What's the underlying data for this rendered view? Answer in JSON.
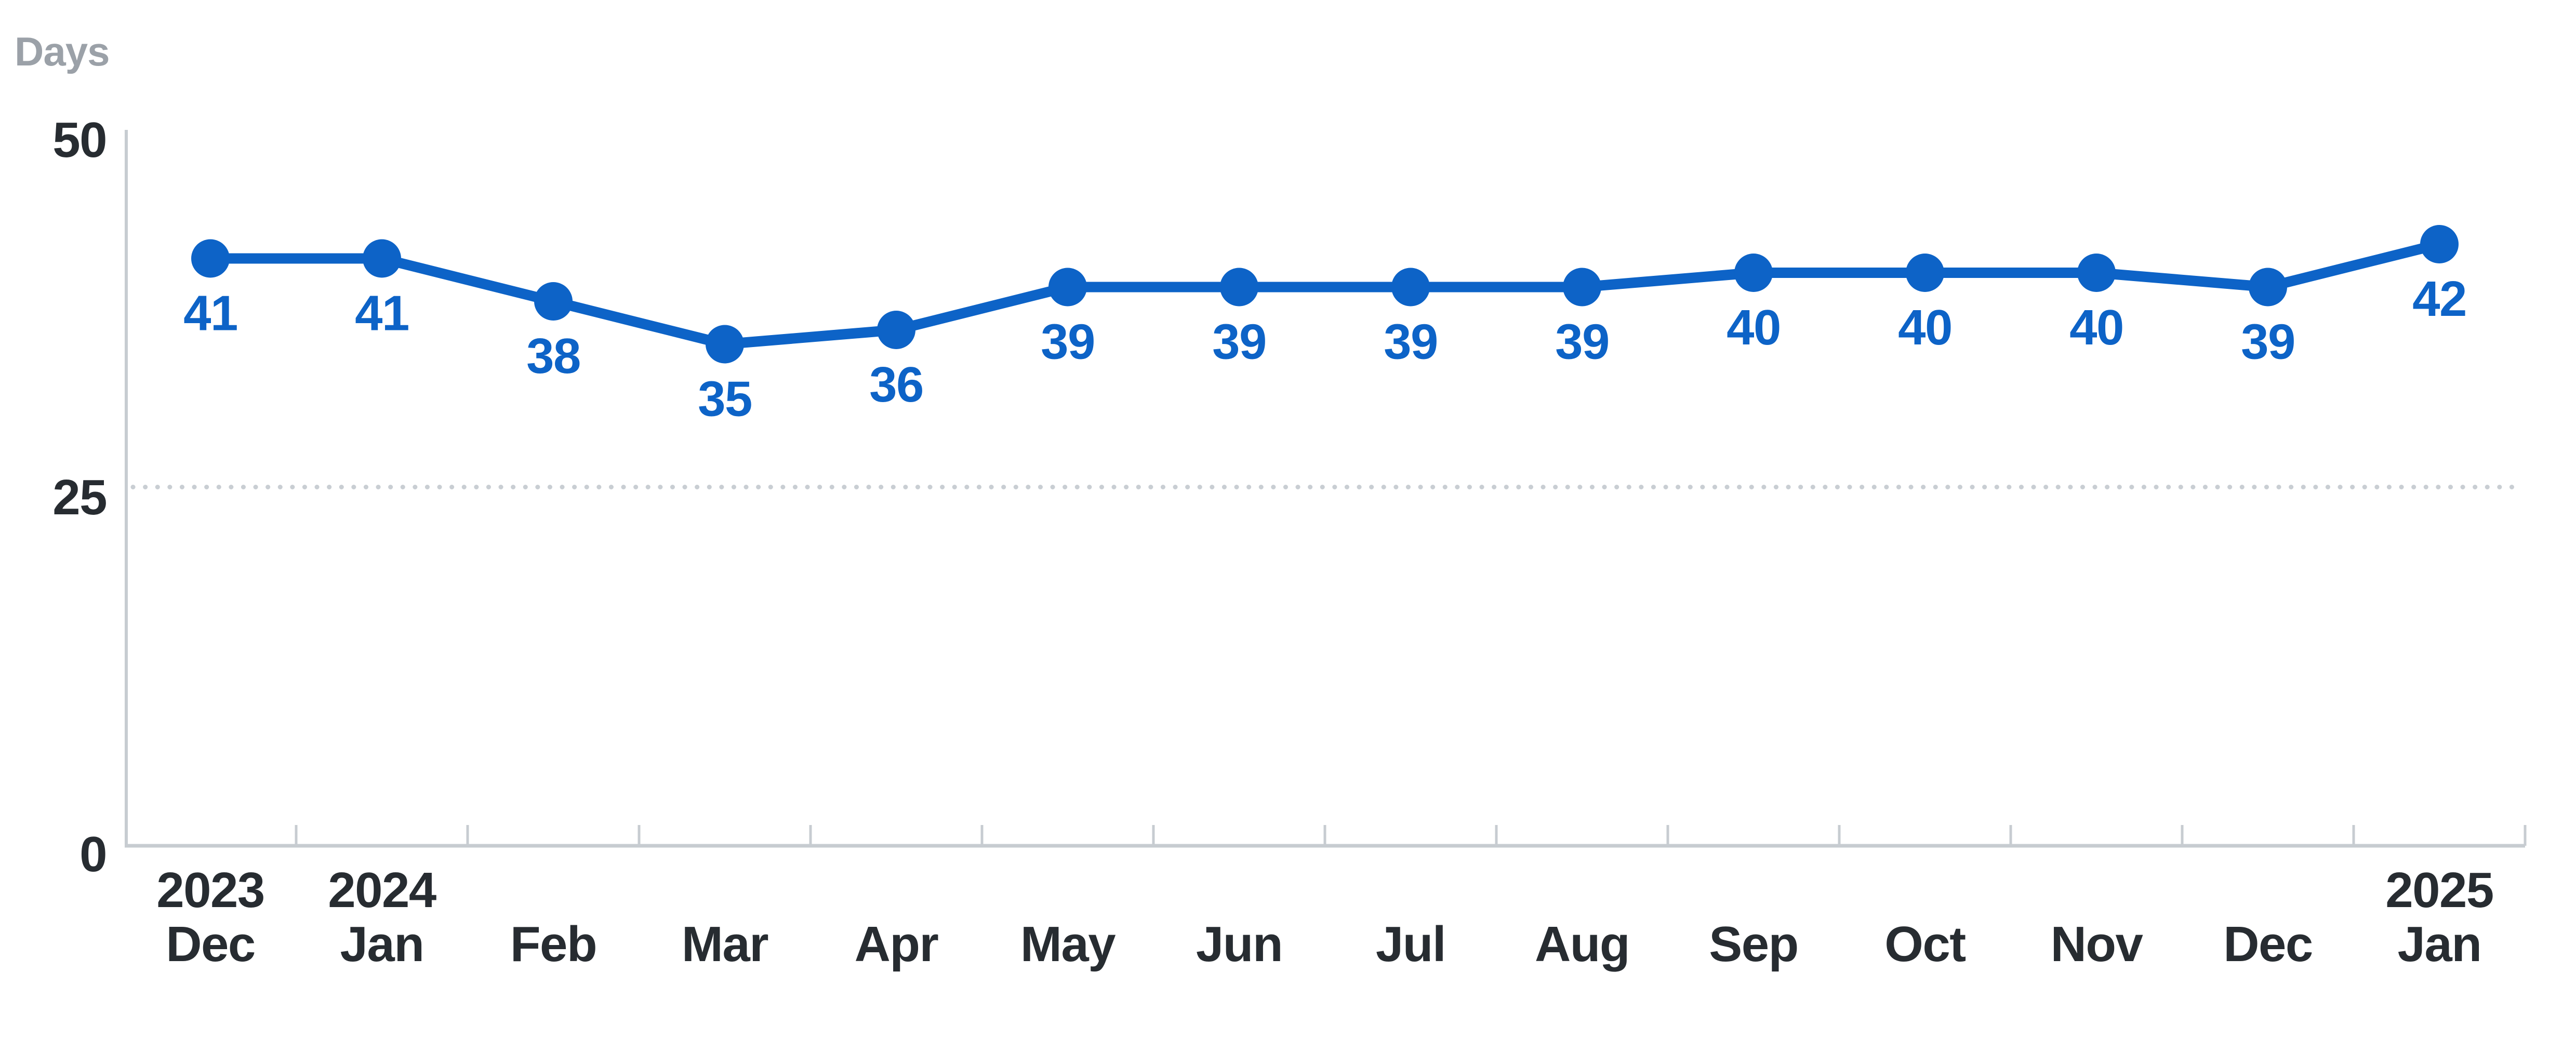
{
  "chart_data": {
    "type": "line",
    "title": "",
    "ylabel": "Days",
    "xlabel": "",
    "categories": [
      "Dec",
      "Jan",
      "Feb",
      "Mar",
      "Apr",
      "May",
      "Jun",
      "Jul",
      "Aug",
      "Sep",
      "Oct",
      "Nov",
      "Dec",
      "Jan"
    ],
    "category_years": [
      "2023",
      "2024",
      "",
      "",
      "",
      "",
      "",
      "",
      "",
      "",
      "",
      "",
      "",
      "2025"
    ],
    "series": [
      {
        "name": "Days",
        "values": [
          41,
          41,
          38,
          35,
          36,
          39,
          39,
          39,
          39,
          40,
          40,
          40,
          39,
          42
        ]
      }
    ],
    "data_labels": [
      "41",
      "41",
      "38",
      "35",
      "36",
      "39",
      "39",
      "39",
      "39",
      "40",
      "40",
      "40",
      "39",
      "42"
    ],
    "y_ticks": [
      0,
      25,
      50
    ],
    "y_tick_labels": [
      "0",
      "25",
      "50"
    ],
    "ylim": [
      0,
      50
    ],
    "dotted_gridline_value": 25,
    "grid": "single dotted horizontal line at 25",
    "legend_position": "none",
    "colors": {
      "series": "#0d63c7",
      "axis_text": "#272c31",
      "unit_text": "#9ba1a8",
      "axis_line": "#c7ccd1",
      "dotted_line": "#c9ced3",
      "background": "#ffffff"
    }
  }
}
